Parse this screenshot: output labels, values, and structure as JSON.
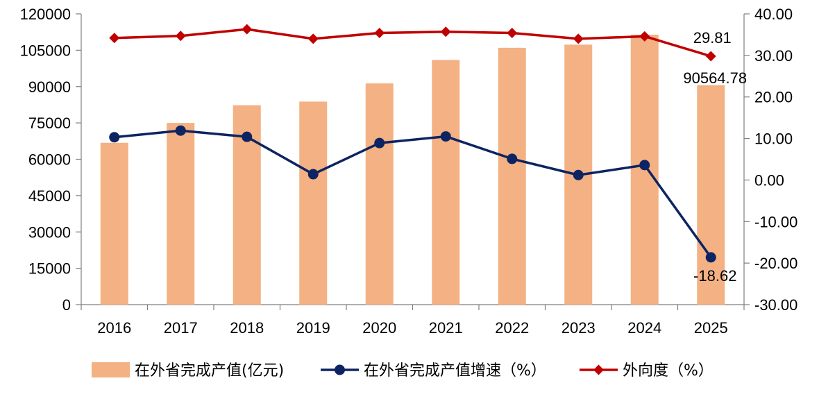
{
  "chart_data": {
    "type": "bar",
    "categories": [
      "2016",
      "2017",
      "2018",
      "2019",
      "2020",
      "2021",
      "2022",
      "2023",
      "2024",
      "2025"
    ],
    "series": [
      {
        "name": "在外省完成产值(亿元)",
        "type": "bar",
        "axis": "left",
        "color": "#F4B183",
        "values": [
          66800,
          75000,
          82300,
          83800,
          91300,
          101000,
          106000,
          107300,
          111400,
          90564.78
        ]
      },
      {
        "name": "在外省完成产值增速（%）",
        "type": "line",
        "axis": "right",
        "color": "#0D2462",
        "marker": "circle",
        "values": [
          10.3,
          11.9,
          10.4,
          1.4,
          8.9,
          10.5,
          5.1,
          1.2,
          3.6,
          -18.62
        ]
      },
      {
        "name": "外向度（%）",
        "type": "line",
        "axis": "right",
        "color": "#C00000",
        "marker": "diamond",
        "values": [
          34.2,
          34.7,
          36.3,
          34.0,
          35.4,
          35.7,
          35.4,
          34.0,
          34.6,
          29.81
        ]
      }
    ],
    "y_left": {
      "ylim": [
        0,
        120000
      ],
      "ticks": [
        "0",
        "15000",
        "30000",
        "45000",
        "60000",
        "75000",
        "90000",
        "105000",
        "120000"
      ]
    },
    "y_right": {
      "ylim": [
        -30,
        40
      ],
      "ticks": [
        "-30.00",
        "-20.00",
        "-10.00",
        "0.00",
        "10.00",
        "20.00",
        "30.00",
        "40.00"
      ]
    },
    "data_labels": [
      {
        "series": 0,
        "index": 9,
        "text": "90564.78"
      },
      {
        "series": 1,
        "index": 9,
        "text": "-18.62"
      },
      {
        "series": 2,
        "index": 9,
        "text": "29.81"
      }
    ],
    "grid": false,
    "legend_position": "bottom"
  }
}
